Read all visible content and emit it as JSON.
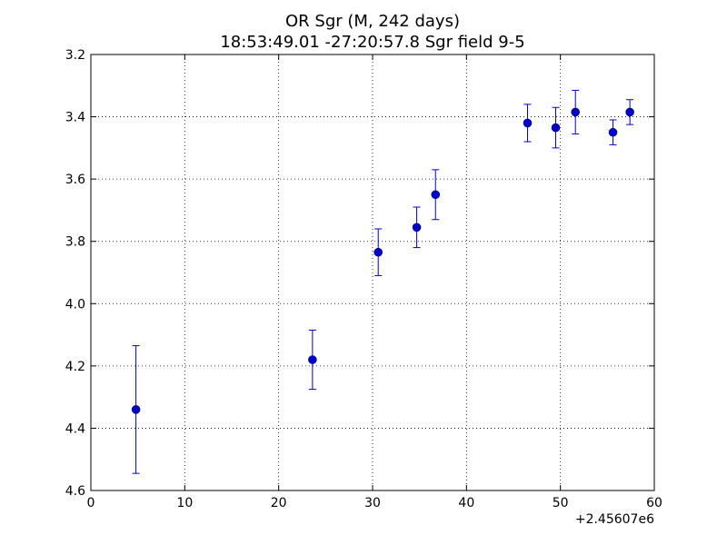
{
  "chart_data": {
    "type": "scatter",
    "title": "OR Sgr  (M, 242 days)",
    "subtitle": "18:53:49.01 -27:20:57.8 Sgr field 9-5",
    "xlabel": "",
    "ylabel": "",
    "x_offset_label": "+2.45607e6",
    "xlim": [
      0,
      60
    ],
    "ylim": [
      3.2,
      4.6
    ],
    "y_inverted": true,
    "grid": true,
    "x_ticks": [
      "0",
      "10",
      "20",
      "30",
      "40",
      "50",
      "60"
    ],
    "y_ticks": [
      "3.2",
      "3.4",
      "3.6",
      "3.8",
      "4.0",
      "4.2",
      "4.4",
      "4.6"
    ],
    "color": "#0000cc",
    "series": [
      {
        "points": [
          {
            "x": 4.8,
            "y": 4.34,
            "err": 0.205
          },
          {
            "x": 23.6,
            "y": 4.18,
            "err": 0.095
          },
          {
            "x": 30.6,
            "y": 3.835,
            "err": 0.075
          },
          {
            "x": 34.7,
            "y": 3.755,
            "err": 0.065
          },
          {
            "x": 36.7,
            "y": 3.65,
            "err": 0.08
          },
          {
            "x": 46.5,
            "y": 3.42,
            "err": 0.06
          },
          {
            "x": 49.5,
            "y": 3.435,
            "err": 0.065
          },
          {
            "x": 51.6,
            "y": 3.385,
            "err": 0.07
          },
          {
            "x": 55.6,
            "y": 3.45,
            "err": 0.04
          },
          {
            "x": 57.4,
            "y": 3.385,
            "err": 0.04
          }
        ]
      }
    ]
  }
}
